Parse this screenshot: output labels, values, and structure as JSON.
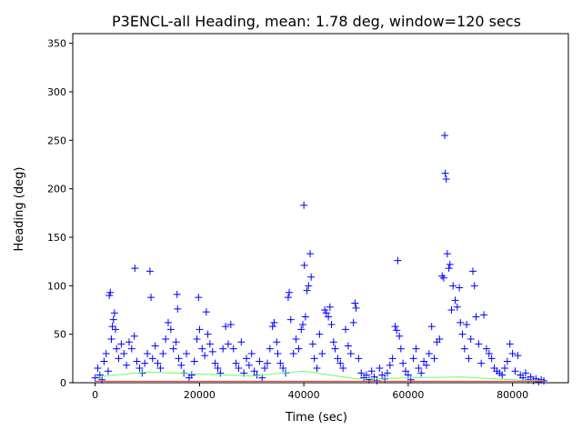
{
  "chart_data": {
    "type": "scatter",
    "title": "P3ENCL-all Heading, mean: 1.78 deg, window=120 secs",
    "xlabel": "Time (sec)",
    "ylabel": "Heading (deg)",
    "xlim": [
      -4300,
      90700
    ],
    "ylim": [
      0,
      360
    ],
    "x_ticks": [
      0,
      20000,
      40000,
      60000,
      80000
    ],
    "x_tick_labels": [
      "0",
      "20000",
      "40000",
      "60000",
      "80000"
    ],
    "y_ticks": [
      0,
      50,
      100,
      150,
      200,
      250,
      300,
      350
    ],
    "y_tick_labels": [
      "0",
      "50",
      "100",
      "150",
      "200",
      "250",
      "300",
      "350"
    ],
    "grid": false,
    "marker": "+",
    "series": [
      {
        "color": "#0000ff",
        "points": [
          [
            0,
            5
          ],
          [
            500,
            15
          ],
          [
            900,
            8
          ],
          [
            1300,
            3
          ],
          [
            1700,
            22
          ],
          [
            2100,
            30
          ],
          [
            2500,
            12
          ],
          [
            2700,
            90
          ],
          [
            2900,
            93
          ],
          [
            3100,
            45
          ],
          [
            3300,
            58
          ],
          [
            3500,
            65
          ],
          [
            3700,
            72
          ],
          [
            3900,
            55
          ],
          [
            4100,
            35
          ],
          [
            4500,
            25
          ],
          [
            5000,
            40
          ],
          [
            5500,
            30
          ],
          [
            6000,
            18
          ],
          [
            6500,
            42
          ],
          [
            7000,
            35
          ],
          [
            7500,
            48
          ],
          [
            7600,
            118
          ],
          [
            8000,
            22
          ],
          [
            8500,
            15
          ],
          [
            9000,
            10
          ],
          [
            9500,
            20
          ],
          [
            10000,
            30
          ],
          [
            10500,
            115
          ],
          [
            10700,
            88
          ],
          [
            11000,
            25
          ],
          [
            11500,
            38
          ],
          [
            12000,
            20
          ],
          [
            12500,
            15
          ],
          [
            13000,
            30
          ],
          [
            13500,
            45
          ],
          [
            14000,
            62
          ],
          [
            14500,
            55
          ],
          [
            15000,
            35
          ],
          [
            15500,
            42
          ],
          [
            15700,
            91
          ],
          [
            15800,
            76
          ],
          [
            16000,
            25
          ],
          [
            16500,
            18
          ],
          [
            17000,
            10
          ],
          [
            17500,
            30
          ],
          [
            18000,
            5
          ],
          [
            18500,
            8
          ],
          [
            19000,
            22
          ],
          [
            19500,
            45
          ],
          [
            19800,
            88
          ],
          [
            20000,
            55
          ],
          [
            20500,
            35
          ],
          [
            21000,
            28
          ],
          [
            21300,
            73
          ],
          [
            21600,
            50
          ],
          [
            22000,
            40
          ],
          [
            22500,
            32
          ],
          [
            23000,
            20
          ],
          [
            23500,
            15
          ],
          [
            24000,
            10
          ],
          [
            24500,
            35
          ],
          [
            25000,
            58
          ],
          [
            25500,
            40
          ],
          [
            26000,
            60
          ],
          [
            26500,
            35
          ],
          [
            27000,
            20
          ],
          [
            27500,
            15
          ],
          [
            28000,
            42
          ],
          [
            28500,
            10
          ],
          [
            29000,
            25
          ],
          [
            29500,
            18
          ],
          [
            30000,
            30
          ],
          [
            30500,
            12
          ],
          [
            31000,
            8
          ],
          [
            31500,
            22
          ],
          [
            32000,
            5
          ],
          [
            32500,
            15
          ],
          [
            33000,
            20
          ],
          [
            33500,
            35
          ],
          [
            34000,
            58
          ],
          [
            34300,
            62
          ],
          [
            34800,
            42
          ],
          [
            35000,
            30
          ],
          [
            35500,
            20
          ],
          [
            36000,
            15
          ],
          [
            36500,
            10
          ],
          [
            37000,
            88
          ],
          [
            37200,
            93
          ],
          [
            37500,
            65
          ],
          [
            38000,
            30
          ],
          [
            38500,
            45
          ],
          [
            39000,
            35
          ],
          [
            39500,
            55
          ],
          [
            39800,
            60
          ],
          [
            40000,
            183
          ],
          [
            40100,
            121
          ],
          [
            40300,
            68
          ],
          [
            40600,
            95
          ],
          [
            40900,
            100
          ],
          [
            41200,
            133
          ],
          [
            41400,
            109
          ],
          [
            41700,
            40
          ],
          [
            42000,
            25
          ],
          [
            42500,
            15
          ],
          [
            43000,
            50
          ],
          [
            43500,
            30
          ],
          [
            44000,
            75
          ],
          [
            44300,
            72
          ],
          [
            44700,
            68
          ],
          [
            45000,
            78
          ],
          [
            45300,
            60
          ],
          [
            45700,
            42
          ],
          [
            46000,
            35
          ],
          [
            46500,
            25
          ],
          [
            47000,
            20
          ],
          [
            47500,
            15
          ],
          [
            48000,
            55
          ],
          [
            48500,
            38
          ],
          [
            49000,
            30
          ],
          [
            49500,
            62
          ],
          [
            49800,
            82
          ],
          [
            50000,
            77
          ],
          [
            50500,
            25
          ],
          [
            51000,
            10
          ],
          [
            51500,
            5
          ],
          [
            52000,
            8
          ],
          [
            52500,
            3
          ],
          [
            53000,
            12
          ],
          [
            53500,
            6
          ],
          [
            54000,
            2
          ],
          [
            54500,
            15
          ],
          [
            55000,
            8
          ],
          [
            55500,
            4
          ],
          [
            56000,
            10
          ],
          [
            56500,
            18
          ],
          [
            57000,
            25
          ],
          [
            57500,
            58
          ],
          [
            57800,
            54
          ],
          [
            58000,
            126
          ],
          [
            58300,
            48
          ],
          [
            58600,
            35
          ],
          [
            59000,
            20
          ],
          [
            59500,
            12
          ],
          [
            60000,
            8
          ],
          [
            60500,
            3
          ],
          [
            61000,
            25
          ],
          [
            61500,
            35
          ],
          [
            62000,
            15
          ],
          [
            62500,
            10
          ],
          [
            63000,
            22
          ],
          [
            63500,
            18
          ],
          [
            64000,
            30
          ],
          [
            64500,
            58
          ],
          [
            65000,
            25
          ],
          [
            65500,
            42
          ],
          [
            66000,
            45
          ],
          [
            66500,
            110
          ],
          [
            66800,
            108
          ],
          [
            67000,
            255
          ],
          [
            67100,
            216
          ],
          [
            67300,
            210
          ],
          [
            67500,
            133
          ],
          [
            67800,
            118
          ],
          [
            68000,
            122
          ],
          [
            68300,
            75
          ],
          [
            68600,
            100
          ],
          [
            69000,
            85
          ],
          [
            69400,
            78
          ],
          [
            69800,
            98
          ],
          [
            70000,
            62
          ],
          [
            70400,
            50
          ],
          [
            70800,
            35
          ],
          [
            71200,
            60
          ],
          [
            71600,
            25
          ],
          [
            72000,
            45
          ],
          [
            72400,
            115
          ],
          [
            72700,
            100
          ],
          [
            73000,
            68
          ],
          [
            73500,
            40
          ],
          [
            74000,
            20
          ],
          [
            74500,
            70
          ],
          [
            75000,
            35
          ],
          [
            75500,
            30
          ],
          [
            76000,
            25
          ],
          [
            76500,
            15
          ],
          [
            77000,
            12
          ],
          [
            77500,
            10
          ],
          [
            78000,
            8
          ],
          [
            78500,
            15
          ],
          [
            79000,
            22
          ],
          [
            79500,
            40
          ],
          [
            80000,
            30
          ],
          [
            80500,
            12
          ],
          [
            81000,
            28
          ],
          [
            81500,
            8
          ],
          [
            82000,
            5
          ],
          [
            82500,
            10
          ],
          [
            83000,
            3
          ],
          [
            83500,
            6
          ],
          [
            84000,
            2
          ],
          [
            84500,
            4
          ],
          [
            85000,
            1
          ],
          [
            85500,
            3
          ],
          [
            86000,
            2
          ]
        ]
      },
      {
        "color": "#66ff66",
        "type": "line",
        "points": [
          [
            0,
            6
          ],
          [
            10000,
            11
          ],
          [
            20000,
            9
          ],
          [
            30000,
            7
          ],
          [
            40000,
            12
          ],
          [
            50000,
            4
          ],
          [
            60000,
            5
          ],
          [
            70000,
            6
          ],
          [
            80000,
            3
          ],
          [
            86000,
            2
          ]
        ]
      },
      {
        "color": "#ff3333",
        "type": "line",
        "points": [
          [
            0,
            1.5
          ],
          [
            86000,
            1.5
          ]
        ]
      }
    ]
  }
}
